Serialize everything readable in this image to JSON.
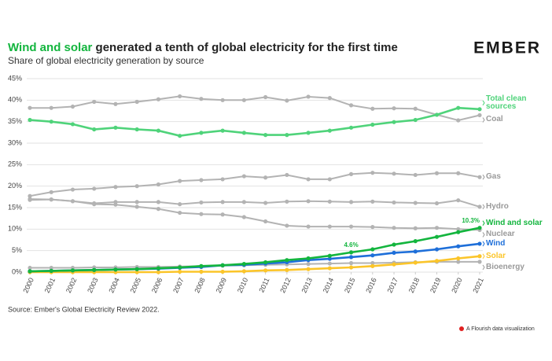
{
  "chart_data": {
    "type": "line",
    "title_lead": "Wind and solar",
    "title": "generated a tenth of global electricity for the first time",
    "subtitle": "Share of global electricity generation by source",
    "logo": "EMBER",
    "source": "Source: Ember's Global Electricity Review 2022.",
    "credit": "A Flourish data visualization",
    "x": [
      2000,
      2001,
      2002,
      2003,
      2004,
      2005,
      2006,
      2007,
      2008,
      2009,
      2010,
      2011,
      2012,
      2013,
      2014,
      2015,
      2016,
      2017,
      2018,
      2019,
      2020,
      2021
    ],
    "xlim": [
      2000,
      2021
    ],
    "xticks": [
      2000,
      2001,
      2002,
      2003,
      2004,
      2005,
      2006,
      2007,
      2008,
      2009,
      2010,
      2011,
      2012,
      2013,
      2014,
      2015,
      2016,
      2017,
      2018,
      2019,
      2020,
      2021
    ],
    "ylim": [
      0,
      45
    ],
    "yticks": [
      {
        "value": 0,
        "label": "0%"
      },
      {
        "value": 5,
        "label": "5%"
      },
      {
        "value": 10,
        "label": "10%"
      },
      {
        "value": 15,
        "label": "15%"
      },
      {
        "value": 20,
        "label": "20%"
      },
      {
        "value": 25,
        "label": "25%"
      },
      {
        "value": 30,
        "label": "30%"
      },
      {
        "value": 35,
        "label": "35%"
      },
      {
        "value": 40,
        "label": "40%"
      },
      {
        "value": 45,
        "label": "45%"
      }
    ],
    "grid": true,
    "series": [
      {
        "name": "Coal",
        "color": "#b3b3b3",
        "values": [
          38.2,
          38.2,
          38.5,
          39.6,
          39.1,
          39.6,
          40.2,
          40.9,
          40.3,
          40.0,
          40.0,
          40.7,
          39.9,
          40.8,
          40.5,
          38.8,
          38.0,
          38.1,
          38.0,
          36.6,
          35.3,
          36.5
        ]
      },
      {
        "name": "Gas",
        "color": "#b3b3b3",
        "values": [
          17.7,
          18.6,
          19.2,
          19.4,
          19.8,
          20.0,
          20.4,
          21.2,
          21.4,
          21.6,
          22.3,
          22.0,
          22.6,
          21.6,
          21.6,
          22.8,
          23.1,
          22.9,
          22.6,
          23.0,
          23.0,
          22.1
        ]
      },
      {
        "name": "Hydro",
        "color": "#b3b3b3",
        "values": [
          17.0,
          16.9,
          16.5,
          16.0,
          16.3,
          16.3,
          16.3,
          15.8,
          16.2,
          16.3,
          16.3,
          16.1,
          16.4,
          16.5,
          16.4,
          16.3,
          16.4,
          16.2,
          16.1,
          16.0,
          16.7,
          15.2
        ]
      },
      {
        "name": "Nuclear",
        "color": "#b3b3b3",
        "values": [
          16.8,
          16.9,
          16.5,
          15.8,
          15.7,
          15.2,
          14.7,
          13.8,
          13.5,
          13.4,
          12.8,
          11.8,
          10.8,
          10.6,
          10.6,
          10.6,
          10.5,
          10.3,
          10.2,
          10.3,
          10.0,
          9.8
        ]
      },
      {
        "name": "Bioenergy",
        "color": "#b3b3b3",
        "values": [
          1.0,
          1.0,
          1.0,
          1.1,
          1.1,
          1.2,
          1.2,
          1.3,
          1.4,
          1.5,
          1.6,
          1.7,
          1.8,
          1.9,
          2.0,
          2.1,
          2.1,
          2.2,
          2.3,
          2.4,
          2.4,
          2.4
        ]
      },
      {
        "name": "Total clean sources",
        "color": "#4fd37a",
        "values": [
          35.4,
          35.0,
          34.4,
          33.2,
          33.6,
          33.2,
          32.9,
          31.7,
          32.4,
          32.9,
          32.4,
          31.9,
          31.9,
          32.4,
          32.9,
          33.6,
          34.3,
          34.9,
          35.4,
          36.6,
          38.2,
          37.9
        ]
      },
      {
        "name": "Solar",
        "color": "#fbc52a",
        "values": [
          0.0,
          0.0,
          0.0,
          0.0,
          0.0,
          0.0,
          0.0,
          0.1,
          0.1,
          0.1,
          0.2,
          0.4,
          0.5,
          0.7,
          0.9,
          1.1,
          1.4,
          1.8,
          2.2,
          2.6,
          3.2,
          3.7
        ]
      },
      {
        "name": "Wind",
        "color": "#1e6fd9",
        "values": [
          0.2,
          0.3,
          0.4,
          0.5,
          0.6,
          0.7,
          0.8,
          1.0,
          1.2,
          1.6,
          1.7,
          2.0,
          2.3,
          2.8,
          3.1,
          3.5,
          3.9,
          4.5,
          4.8,
          5.3,
          6.0,
          6.6
        ]
      },
      {
        "name": "Wind and solar",
        "color": "#13b53e",
        "values": [
          0.2,
          0.3,
          0.4,
          0.5,
          0.6,
          0.7,
          0.9,
          1.1,
          1.4,
          1.6,
          1.9,
          2.3,
          2.8,
          3.2,
          3.8,
          4.6,
          5.3,
          6.4,
          7.2,
          8.2,
          9.3,
          10.3
        ],
        "value_labels": [
          null,
          null,
          null,
          null,
          null,
          null,
          null,
          null,
          null,
          null,
          null,
          null,
          null,
          null,
          null,
          "4.6%",
          null,
          null,
          null,
          null,
          null,
          "10.3%"
        ]
      }
    ]
  }
}
